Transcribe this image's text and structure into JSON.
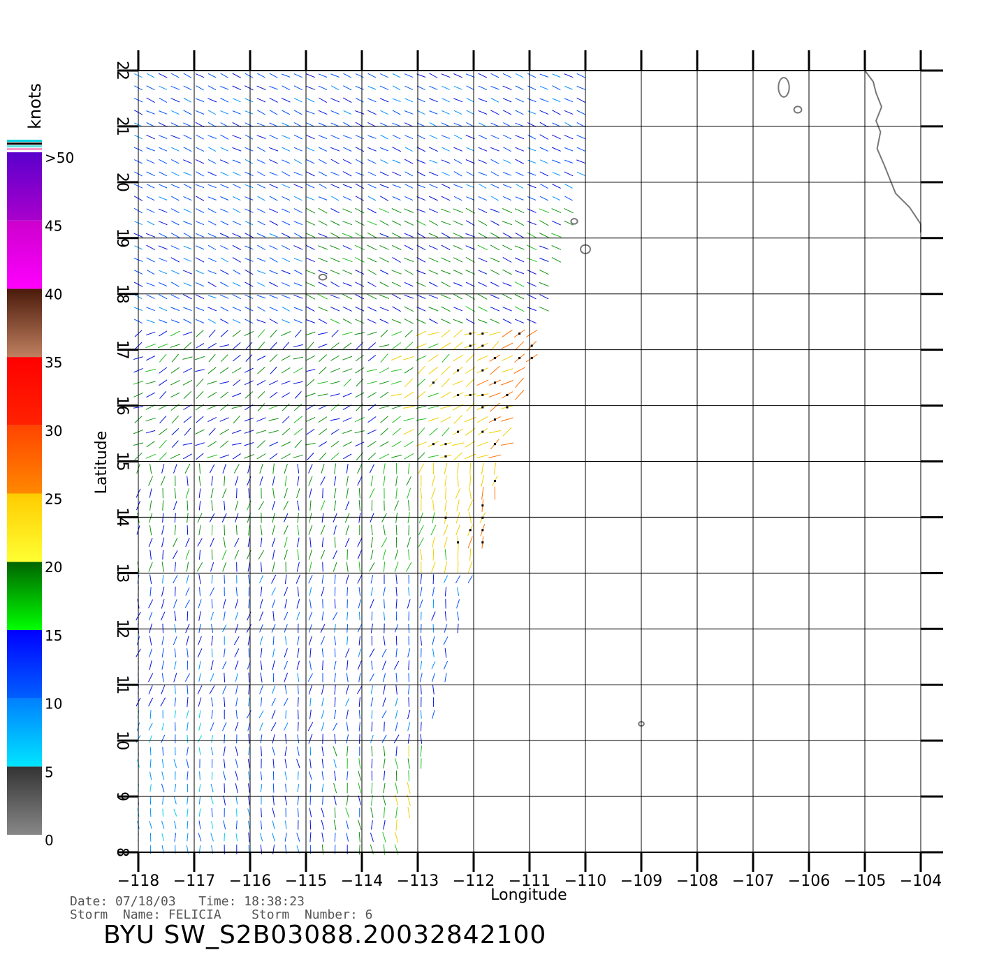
{
  "map": {
    "lon_range": [
      -118,
      -104
    ],
    "lat_range": [
      8,
      22
    ],
    "lon_ticks": [
      -118,
      -117,
      -116,
      -115,
      -114,
      -113,
      -112,
      -111,
      -110,
      -109,
      -108,
      -107,
      -106,
      -105,
      -104
    ],
    "lat_ticks": [
      8,
      9,
      10,
      11,
      12,
      13,
      14,
      15,
      16,
      17,
      18,
      19,
      20,
      21,
      22
    ],
    "xlabel": "Longitude",
    "ylabel": "Latitude",
    "grid": true,
    "coastline_color": "#777777",
    "wind_vectors": "scatterometer wind swath, colored by speed"
  },
  "colorbar": {
    "unit": "knots",
    "labels": [
      {
        "value": 0,
        "text": "0"
      },
      {
        "value": 5,
        "text": "5"
      },
      {
        "value": 10,
        "text": "10"
      },
      {
        "value": 15,
        "text": "15"
      },
      {
        "value": 20,
        "text": "20"
      },
      {
        "value": 25,
        "text": "25"
      },
      {
        "value": 30,
        "text": "30"
      },
      {
        "value": 35,
        "text": "35"
      },
      {
        "value": 40,
        "text": "40"
      },
      {
        "value": 45,
        "text": "45"
      },
      {
        "value": 50,
        "text": ">50"
      }
    ],
    "bands": [
      {
        "from": 0,
        "to": 5,
        "top": "#333333",
        "bottom": "#888888"
      },
      {
        "from": 5,
        "to": 10,
        "top": "#0080ff",
        "bottom": "#00e5ff"
      },
      {
        "from": 10,
        "to": 15,
        "top": "#0000ff",
        "bottom": "#0060ff"
      },
      {
        "from": 15,
        "to": 20,
        "top": "#006400",
        "bottom": "#00ff00"
      },
      {
        "from": 20,
        "to": 25,
        "top": "#ffcc00",
        "bottom": "#ffff33"
      },
      {
        "from": 25,
        "to": 30,
        "top": "#ff4400",
        "bottom": "#ff8800"
      },
      {
        "from": 30,
        "to": 35,
        "top": "#ff0000",
        "bottom": "#ff2200"
      },
      {
        "from": 35,
        "to": 40,
        "top": "#4a1a0a",
        "bottom": "#c08060"
      },
      {
        "from": 40,
        "to": 45,
        "top": "#cc00cc",
        "bottom": "#ff00ff"
      },
      {
        "from": 45,
        "to": 50,
        "top": "#5a00cc",
        "bottom": "#aa00cc"
      }
    ]
  },
  "info": {
    "date_line": "Date: 07/18/03   Time: 18:38:23",
    "storm_line": "Storm  Name: FELICIA    Storm  Number: 6",
    "title": "BYU  SW_S2B03088.20032842100"
  }
}
